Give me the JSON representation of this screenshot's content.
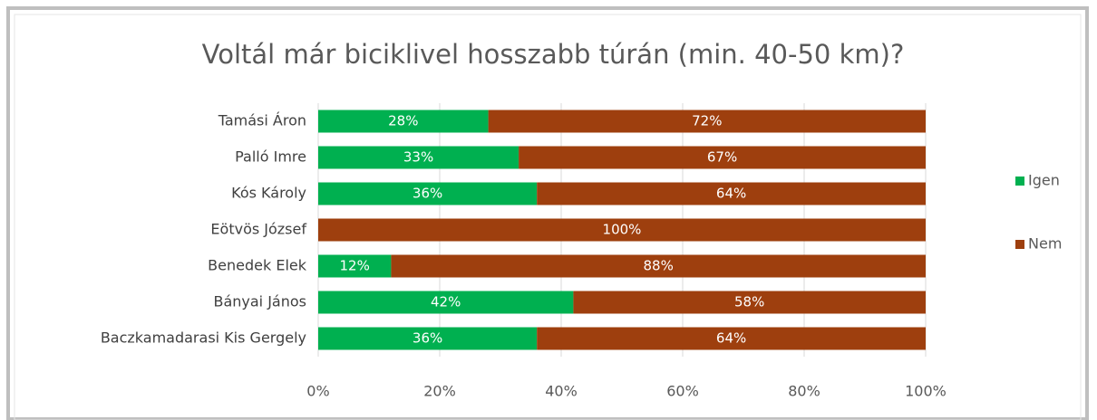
{
  "chart_data": {
    "type": "stacked-bar-horizontal",
    "title": "Voltál már biciklivel hosszabb túrán (min. 40-50 km)?",
    "categories": [
      "Tamási Áron",
      "Palló Imre",
      "Kós Károly",
      "Eötvös József",
      "Benedek Elek",
      "Bányai János",
      "Baczkamadarasi Kis Gergely"
    ],
    "series": [
      {
        "name": "Igen",
        "color": "#00b050",
        "values": [
          28,
          33,
          36,
          0,
          12,
          42,
          36
        ],
        "value_labels": [
          "28%",
          "33%",
          "36%",
          null,
          "12%",
          "42%",
          "36%"
        ]
      },
      {
        "name": "Nem",
        "color": "#9e3f0e",
        "values": [
          72,
          67,
          64,
          100,
          88,
          58,
          64
        ],
        "value_labels": [
          "72%",
          "67%",
          "64%",
          "100%",
          "88%",
          "58%",
          "64%"
        ]
      }
    ],
    "xlim": [
      0,
      100
    ],
    "xticks": [
      {
        "value": 0,
        "label": "0%"
      },
      {
        "value": 20,
        "label": "20%"
      },
      {
        "value": 40,
        "label": "40%"
      },
      {
        "value": 60,
        "label": "60%"
      },
      {
        "value": 80,
        "label": "80%"
      },
      {
        "value": 100,
        "label": "100%"
      }
    ],
    "grid": true,
    "legend": "right"
  }
}
